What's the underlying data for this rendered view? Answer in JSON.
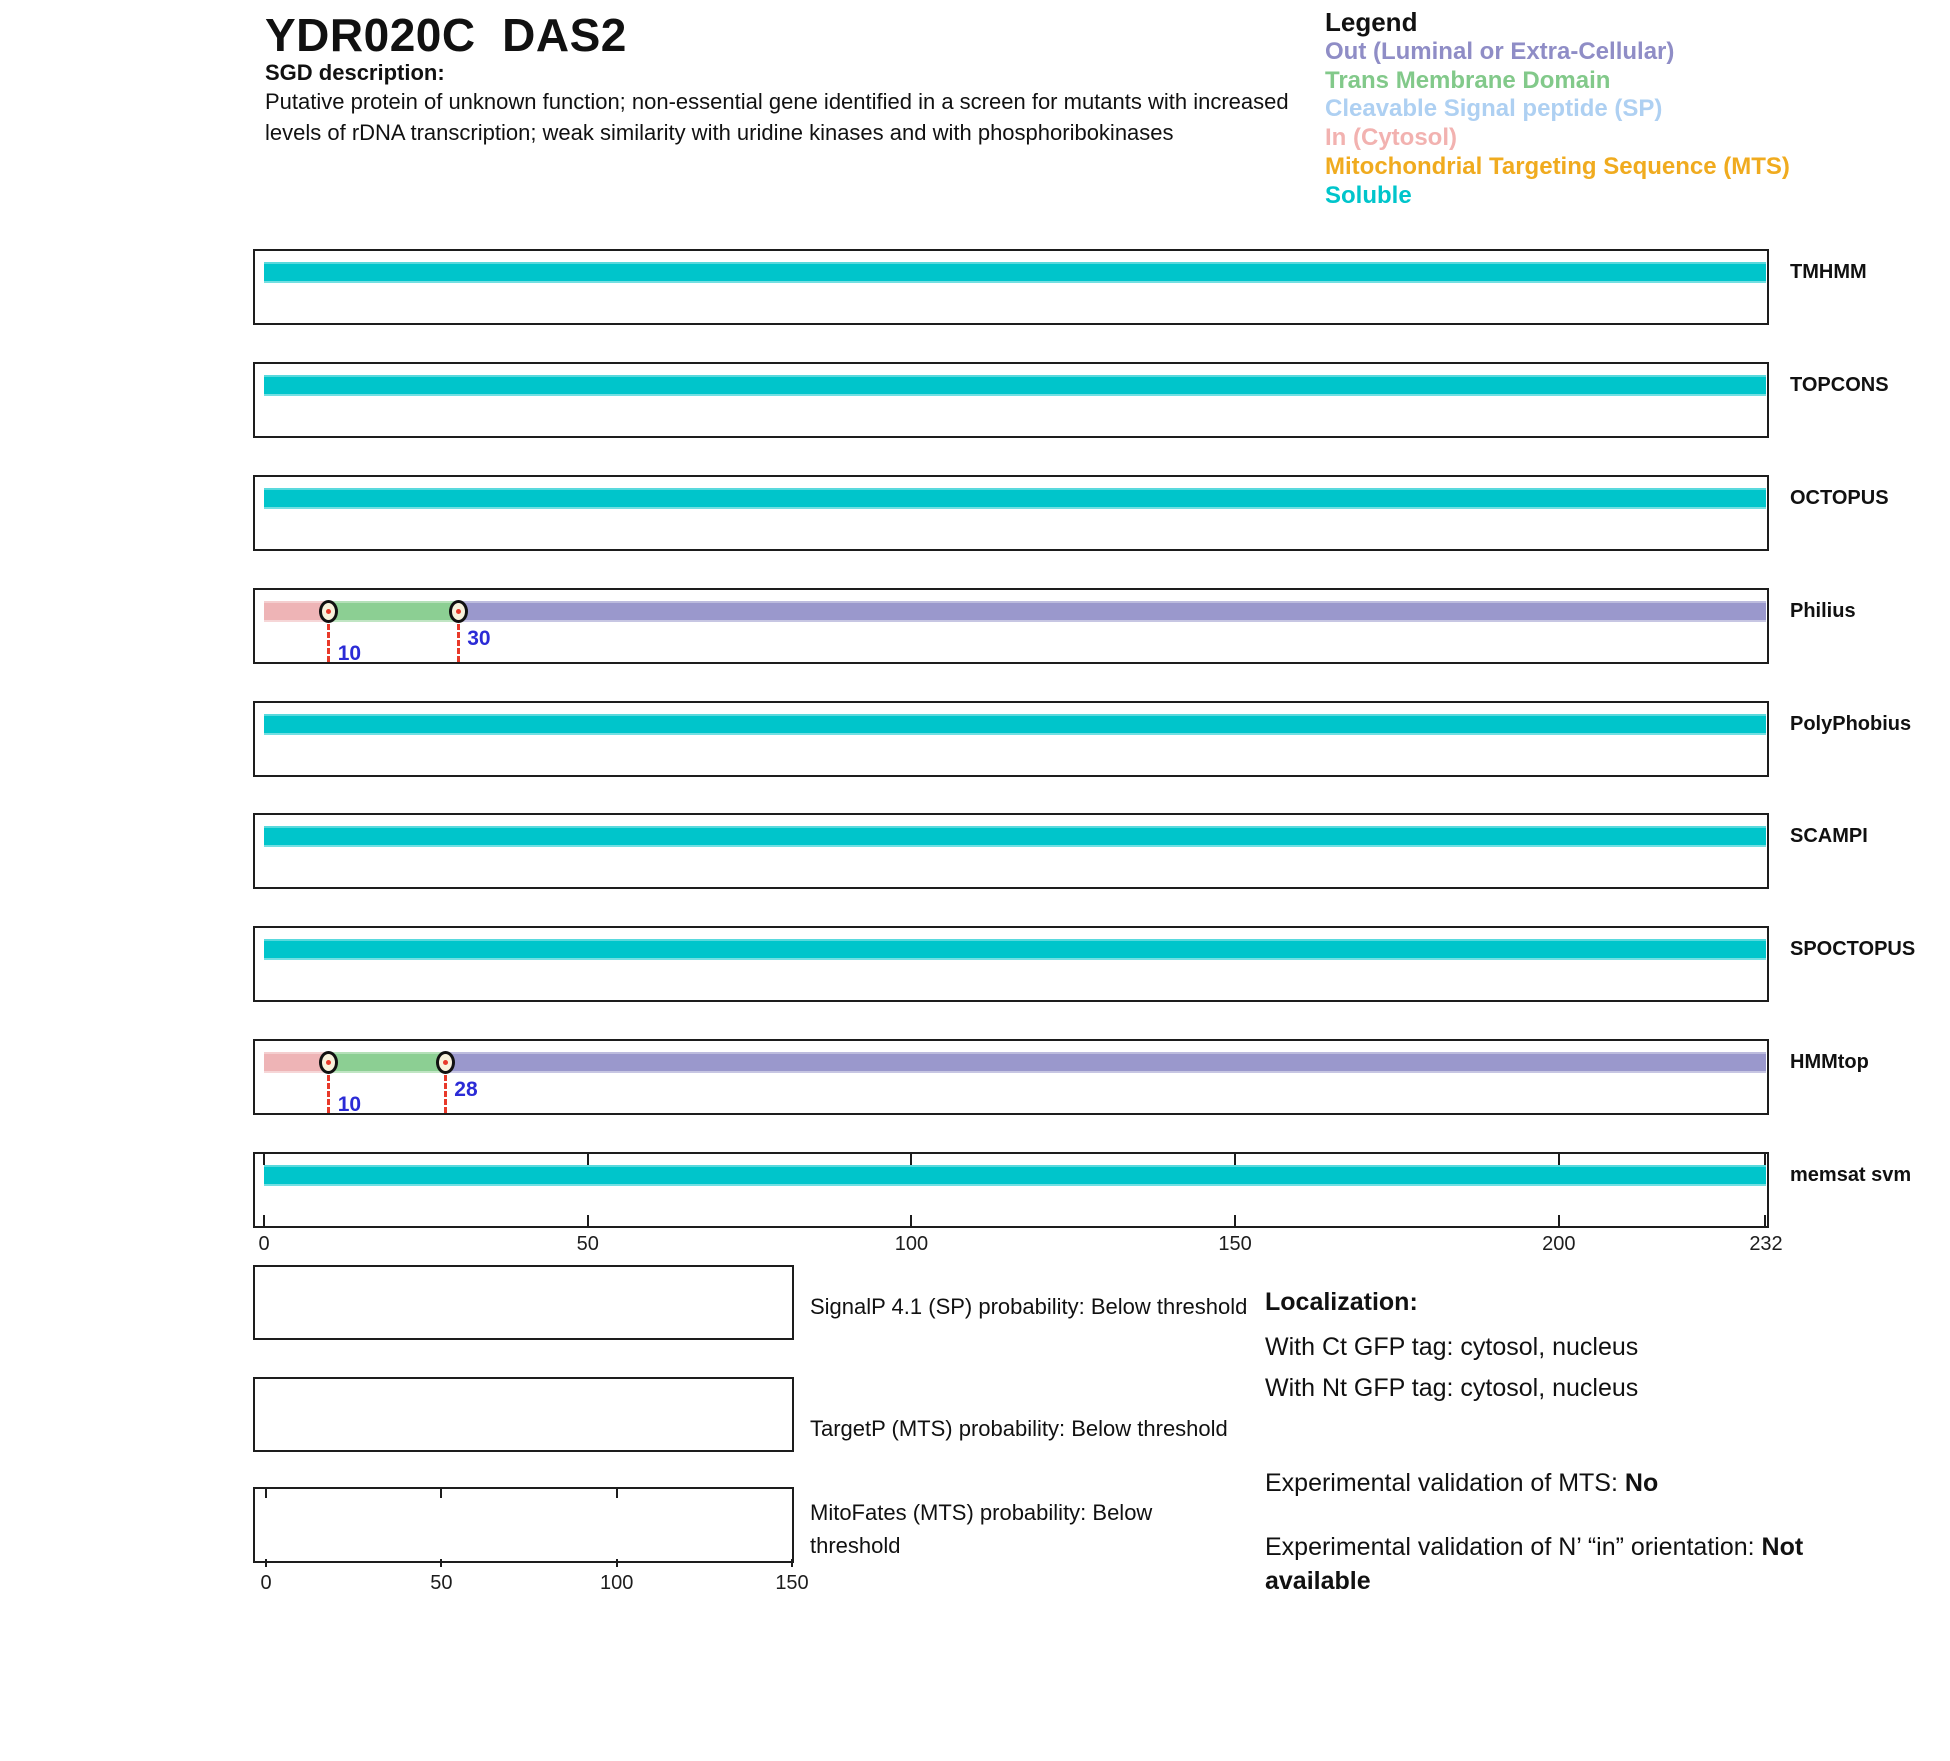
{
  "header": {
    "title": "YDR020C  DAS2",
    "sgd_label": "SGD description:",
    "description_lines": [
      "Putative protein of unknown function; non-essential gene identified in a screen for mutants with increased",
      "levels of rDNA transcription; weak similarity with uridine kinases and with phosphoribokinases"
    ]
  },
  "legend": {
    "title": "Legend",
    "items": [
      {
        "label": "Out (Luminal or Extra-Cellular)",
        "type": "out",
        "color": "#8f8dc6"
      },
      {
        "label": "Trans Membrane Domain",
        "type": "tm",
        "color": "#82c98a"
      },
      {
        "label": "Cleavable Signal peptide (SP)",
        "type": "sp",
        "color": "#aed0f2"
      },
      {
        "label": "In (Cytosol)",
        "type": "in",
        "color": "#f2b2b0"
      },
      {
        "label": "Mitochondrial Targeting Sequence (MTS)",
        "type": "mts",
        "color": "#f0ab1f"
      },
      {
        "label": "Soluble",
        "type": "soluble",
        "color": "#00c5cb"
      }
    ]
  },
  "colors": {
    "out": "#9a98cc",
    "tm": "#8ccf93",
    "sp": "#aed0f2",
    "in": "#eeb4b6",
    "mts": "#f0ab1f",
    "soluble": "#00c5cb",
    "marker_fill": "#f8f2dc",
    "marker_ring": "#111111",
    "dash_red": "#e8392a",
    "tick_blue": "#2b2bd6",
    "box_border": "#1d1d1d"
  },
  "chart_data": [
    {
      "type": "bar",
      "subtype": "protein-topology-tracks",
      "title": "Membrane topology predictions for YDR020C DAS2",
      "x_range": [
        0,
        232
      ],
      "x_ticks": [
        0,
        50,
        100,
        150,
        200,
        232
      ],
      "legend_position": "top-right",
      "tracks": [
        {
          "name": "TMHMM",
          "segments": [
            {
              "type": "soluble",
              "start": 0,
              "end": 232
            }
          ],
          "markers": []
        },
        {
          "name": "TOPCONS",
          "segments": [
            {
              "type": "soluble",
              "start": 0,
              "end": 232
            }
          ],
          "markers": []
        },
        {
          "name": "OCTOPUS",
          "segments": [
            {
              "type": "soluble",
              "start": 0,
              "end": 232
            }
          ],
          "markers": []
        },
        {
          "name": "Philius",
          "segments": [
            {
              "type": "in",
              "start": 0,
              "end": 10
            },
            {
              "type": "tm",
              "start": 10,
              "end": 30
            },
            {
              "type": "out",
              "start": 30,
              "end": 232
            }
          ],
          "markers": [
            {
              "pos": 10,
              "label": "10"
            },
            {
              "pos": 30,
              "label": "30"
            }
          ]
        },
        {
          "name": "PolyPhobius",
          "segments": [
            {
              "type": "soluble",
              "start": 0,
              "end": 232
            }
          ],
          "markers": []
        },
        {
          "name": "SCAMPI",
          "segments": [
            {
              "type": "soluble",
              "start": 0,
              "end": 232
            }
          ],
          "markers": []
        },
        {
          "name": "SPOCTOPUS",
          "segments": [
            {
              "type": "soluble",
              "start": 0,
              "end": 232
            }
          ],
          "markers": []
        },
        {
          "name": "HMMtop",
          "segments": [
            {
              "type": "in",
              "start": 0,
              "end": 10
            },
            {
              "type": "tm",
              "start": 10,
              "end": 28
            },
            {
              "type": "out",
              "start": 28,
              "end": 232
            }
          ],
          "markers": [
            {
              "pos": 10,
              "label": "10"
            },
            {
              "pos": 28,
              "label": "28"
            }
          ]
        },
        {
          "name": "memsat svm",
          "segments": [
            {
              "type": "soluble",
              "start": 0,
              "end": 232
            }
          ],
          "markers": [],
          "axis": true
        }
      ]
    },
    {
      "type": "line",
      "caption": "SignalP 4.1 (SP) probability: Below threshold",
      "x": [],
      "y": []
    },
    {
      "type": "line",
      "caption": "TargetP (MTS) probability: Below threshold",
      "x": [],
      "y": []
    },
    {
      "type": "line",
      "caption": "MitoFates (MTS) probability: Below threshold",
      "x": [],
      "y": [],
      "xlim": [
        0,
        150
      ],
      "x_ticks": [
        0,
        50,
        100,
        150
      ]
    }
  ],
  "localization": {
    "heading": "Localization:",
    "gfp_lines": [
      "With Ct GFP tag: cytosol, nucleus",
      "With Nt GFP tag: cytosol, nucleus"
    ],
    "mts_label": "Experimental validation of MTS: ",
    "mts_value": "No",
    "orientation_label": "Experimental validation of N’ “in” orientation: ",
    "orientation_value": "Not available"
  }
}
